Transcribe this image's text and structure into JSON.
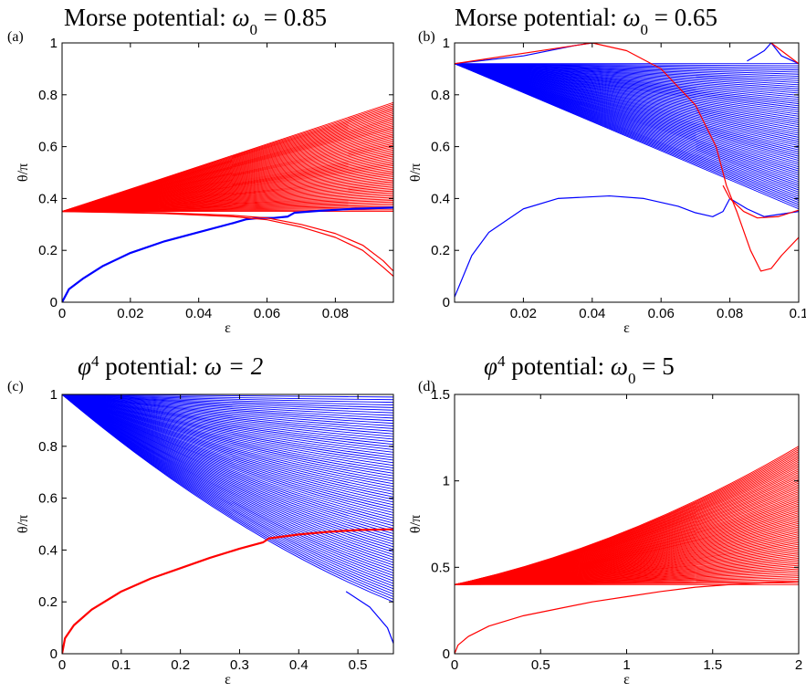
{
  "colors": {
    "red": "#ff0000",
    "blue": "#0000ff",
    "axes": "#000000"
  },
  "chart_data": [
    {
      "type": "line",
      "panel_label": "(a)",
      "title_text": "Morse potential:",
      "title_symbol": "ω",
      "title_sub": "0",
      "title_value": "= 0.85",
      "xlabel": "ε",
      "ylabel": "θ/π",
      "xlim": [
        0,
        0.097
      ],
      "ylim": [
        0,
        1
      ],
      "xticks": [
        {
          "v": 0,
          "t": "0"
        },
        {
          "v": 0.02,
          "t": "0.02"
        },
        {
          "v": 0.04,
          "t": "0.04"
        },
        {
          "v": 0.06,
          "t": "0.06"
        },
        {
          "v": 0.08,
          "t": "0.08"
        }
      ],
      "yticks": [
        {
          "v": 0,
          "t": "0"
        },
        {
          "v": 0.2,
          "t": "0.2"
        },
        {
          "v": 0.4,
          "t": "0.4"
        },
        {
          "v": 0.6,
          "t": "0.6"
        },
        {
          "v": 0.8,
          "t": "0.8"
        },
        {
          "v": 1,
          "t": "1"
        }
      ],
      "fan": {
        "color": "red",
        "origin": [
          0,
          0.35
        ],
        "x_end": 0.097,
        "ends_min": 0.35,
        "ends_max": 0.77,
        "count": 70
      },
      "series": [
        {
          "color": "blue",
          "width": 2.2,
          "points": [
            [
              0,
              0
            ],
            [
              0.002,
              0.05
            ],
            [
              0.006,
              0.09
            ],
            [
              0.012,
              0.14
            ],
            [
              0.02,
              0.19
            ],
            [
              0.03,
              0.235
            ],
            [
              0.04,
              0.27
            ],
            [
              0.05,
              0.305
            ],
            [
              0.054,
              0.32
            ],
            [
              0.058,
              0.325
            ],
            [
              0.062,
              0.325
            ],
            [
              0.066,
              0.33
            ],
            [
              0.068,
              0.345
            ],
            [
              0.075,
              0.352
            ],
            [
              0.085,
              0.36
            ],
            [
              0.097,
              0.365
            ]
          ]
        },
        {
          "color": "red",
          "width": 1.2,
          "points": [
            [
              0,
              0.35
            ],
            [
              0.03,
              0.345
            ],
            [
              0.05,
              0.335
            ],
            [
              0.06,
              0.325
            ],
            [
              0.07,
              0.3
            ],
            [
              0.08,
              0.265
            ],
            [
              0.088,
              0.22
            ],
            [
              0.094,
              0.16
            ],
            [
              0.097,
              0.12
            ]
          ]
        },
        {
          "color": "red",
          "width": 1.2,
          "points": [
            [
              0,
              0.35
            ],
            [
              0.03,
              0.342
            ],
            [
              0.05,
              0.33
            ],
            [
              0.06,
              0.318
            ],
            [
              0.07,
              0.29
            ],
            [
              0.08,
              0.25
            ],
            [
              0.088,
              0.2
            ],
            [
              0.094,
              0.135
            ],
            [
              0.097,
              0.1
            ]
          ]
        }
      ]
    },
    {
      "type": "line",
      "panel_label": "(b)",
      "title_text": "Morse potential:",
      "title_symbol": "ω",
      "title_sub": "0",
      "title_value": "= 0.65",
      "xlabel": "ε",
      "ylabel": "θ/π",
      "xlim": [
        0,
        0.1
      ],
      "ylim": [
        0,
        1
      ],
      "xticks": [
        {
          "v": 0.02,
          "t": "0.02"
        },
        {
          "v": 0.04,
          "t": "0.04"
        },
        {
          "v": 0.06,
          "t": "0.06"
        },
        {
          "v": 0.08,
          "t": "0.08"
        },
        {
          "v": 0.1,
          "t": "0.1"
        }
      ],
      "yticks": [
        {
          "v": 0,
          "t": "0"
        },
        {
          "v": 0.2,
          "t": "0.2"
        },
        {
          "v": 0.4,
          "t": "0.4"
        },
        {
          "v": 0.6,
          "t": "0.6"
        },
        {
          "v": 0.8,
          "t": "0.8"
        },
        {
          "v": 1,
          "t": "1"
        }
      ],
      "fan": {
        "color": "blue",
        "origin": [
          0,
          0.92
        ],
        "x_end": 0.1,
        "ends_min": 0.36,
        "ends_max": 0.92,
        "count": 70
      },
      "series": [
        {
          "color": "blue",
          "width": 1.2,
          "points": [
            [
              0,
              0.02
            ],
            [
              0.005,
              0.18
            ],
            [
              0.01,
              0.27
            ],
            [
              0.02,
              0.36
            ],
            [
              0.03,
              0.4
            ],
            [
              0.045,
              0.41
            ],
            [
              0.055,
              0.4
            ],
            [
              0.065,
              0.37
            ],
            [
              0.07,
              0.345
            ],
            [
              0.075,
              0.33
            ],
            [
              0.078,
              0.35
            ],
            [
              0.08,
              0.4
            ],
            [
              0.085,
              0.36
            ],
            [
              0.09,
              0.33
            ],
            [
              0.1,
              0.35
            ]
          ]
        },
        {
          "color": "blue",
          "width": 1.2,
          "points": [
            [
              0,
              0.92
            ],
            [
              0.02,
              0.95
            ],
            [
              0.035,
              0.99
            ],
            [
              0.04,
              1.0
            ]
          ]
        },
        {
          "color": "blue",
          "width": 1.2,
          "points": [
            [
              0.085,
              0.93
            ],
            [
              0.09,
              0.97
            ],
            [
              0.092,
              1.0
            ],
            [
              0.095,
              0.95
            ],
            [
              0.1,
              0.92
            ]
          ]
        },
        {
          "color": "red",
          "width": 1.2,
          "points": [
            [
              0,
              0.92
            ],
            [
              0.04,
              1.0
            ],
            [
              0.05,
              0.97
            ],
            [
              0.06,
              0.9
            ],
            [
              0.07,
              0.76
            ],
            [
              0.076,
              0.6
            ],
            [
              0.079,
              0.45
            ],
            [
              0.082,
              0.35
            ],
            [
              0.086,
              0.2
            ],
            [
              0.089,
              0.12
            ],
            [
              0.092,
              0.13
            ],
            [
              0.095,
              0.18
            ],
            [
              0.1,
              0.25
            ]
          ]
        },
        {
          "color": "red",
          "width": 1.2,
          "points": [
            [
              0.078,
              0.45
            ],
            [
              0.08,
              0.4
            ],
            [
              0.084,
              0.35
            ],
            [
              0.088,
              0.325
            ],
            [
              0.094,
              0.33
            ],
            [
              0.1,
              0.355
            ]
          ]
        },
        {
          "color": "red",
          "width": 1.2,
          "points": [
            [
              0.092,
              1.0
            ],
            [
              0.096,
              0.96
            ],
            [
              0.1,
              0.92
            ]
          ]
        }
      ]
    },
    {
      "type": "line",
      "panel_label": "(c)",
      "title_text": "potential:",
      "title_symbol": "φ",
      "title_sub": "",
      "title_sup": "4",
      "title_value": "ω = 2",
      "xlabel": "ε",
      "ylabel": "θ/π",
      "xlim": [
        0,
        0.56
      ],
      "ylim": [
        0,
        1
      ],
      "xticks": [
        {
          "v": 0,
          "t": "0"
        },
        {
          "v": 0.1,
          "t": "0.1"
        },
        {
          "v": 0.2,
          "t": "0.2"
        },
        {
          "v": 0.3,
          "t": "0.3"
        },
        {
          "v": 0.4,
          "t": "0.4"
        },
        {
          "v": 0.5,
          "t": "0.5"
        }
      ],
      "yticks": [
        {
          "v": 0,
          "t": "0"
        },
        {
          "v": 0.2,
          "t": "0.2"
        },
        {
          "v": 0.4,
          "t": "0.4"
        },
        {
          "v": 0.6,
          "t": "0.6"
        },
        {
          "v": 0.8,
          "t": "0.8"
        },
        {
          "v": 1,
          "t": "1"
        }
      ],
      "fan": {
        "color": "blue",
        "origin": [
          0,
          1.0
        ],
        "x_end": 0.56,
        "ends_min": 0.2,
        "ends_max": 1.0,
        "count": 80,
        "curve": 0.35
      },
      "series": [
        {
          "color": "red",
          "width": 2.2,
          "points": [
            [
              0,
              0
            ],
            [
              0.005,
              0.06
            ],
            [
              0.02,
              0.11
            ],
            [
              0.05,
              0.17
            ],
            [
              0.1,
              0.24
            ],
            [
              0.15,
              0.29
            ],
            [
              0.2,
              0.33
            ],
            [
              0.25,
              0.37
            ],
            [
              0.3,
              0.405
            ],
            [
              0.34,
              0.43
            ],
            [
              0.35,
              0.445
            ],
            [
              0.4,
              0.46
            ],
            [
              0.45,
              0.47
            ],
            [
              0.5,
              0.477
            ],
            [
              0.56,
              0.48
            ]
          ]
        },
        {
          "color": "blue",
          "width": 1.2,
          "points": [
            [
              0.48,
              0.24
            ],
            [
              0.52,
              0.18
            ],
            [
              0.55,
              0.1
            ],
            [
              0.56,
              0.04
            ]
          ]
        }
      ]
    },
    {
      "type": "line",
      "panel_label": "(d)",
      "title_text": "potential:",
      "title_symbol": "φ",
      "title_sub": "0",
      "title_sup": "4",
      "title_value": "= 5",
      "xlabel": "ε",
      "ylabel": "θ/π",
      "xlim": [
        0,
        2
      ],
      "ylim": [
        0,
        1.5
      ],
      "xticks": [
        {
          "v": 0,
          "t": "0"
        },
        {
          "v": 0.5,
          "t": "0.5"
        },
        {
          "v": 1,
          "t": "1"
        },
        {
          "v": 1.5,
          "t": "1.5"
        },
        {
          "v": 2,
          "t": "2"
        }
      ],
      "yticks": [
        {
          "v": 0,
          "t": "0"
        },
        {
          "v": 0.5,
          "t": "0.5"
        },
        {
          "v": 1,
          "t": "1"
        },
        {
          "v": 1.5,
          "t": "1.5"
        }
      ],
      "fan": {
        "color": "red",
        "origin": [
          0,
          0.4
        ],
        "x_end": 2,
        "ends_min": 0.4,
        "ends_max": 1.2,
        "count": 80,
        "curve": -0.45
      },
      "series": [
        {
          "color": "red",
          "width": 1.2,
          "points": [
            [
              0,
              0
            ],
            [
              0.02,
              0.05
            ],
            [
              0.08,
              0.1
            ],
            [
              0.2,
              0.16
            ],
            [
              0.4,
              0.22
            ],
            [
              0.6,
              0.26
            ],
            [
              0.8,
              0.3
            ],
            [
              1.0,
              0.33
            ],
            [
              1.2,
              0.36
            ],
            [
              1.4,
              0.385
            ],
            [
              1.6,
              0.4
            ],
            [
              1.8,
              0.41
            ],
            [
              2.0,
              0.42
            ]
          ]
        }
      ]
    }
  ]
}
